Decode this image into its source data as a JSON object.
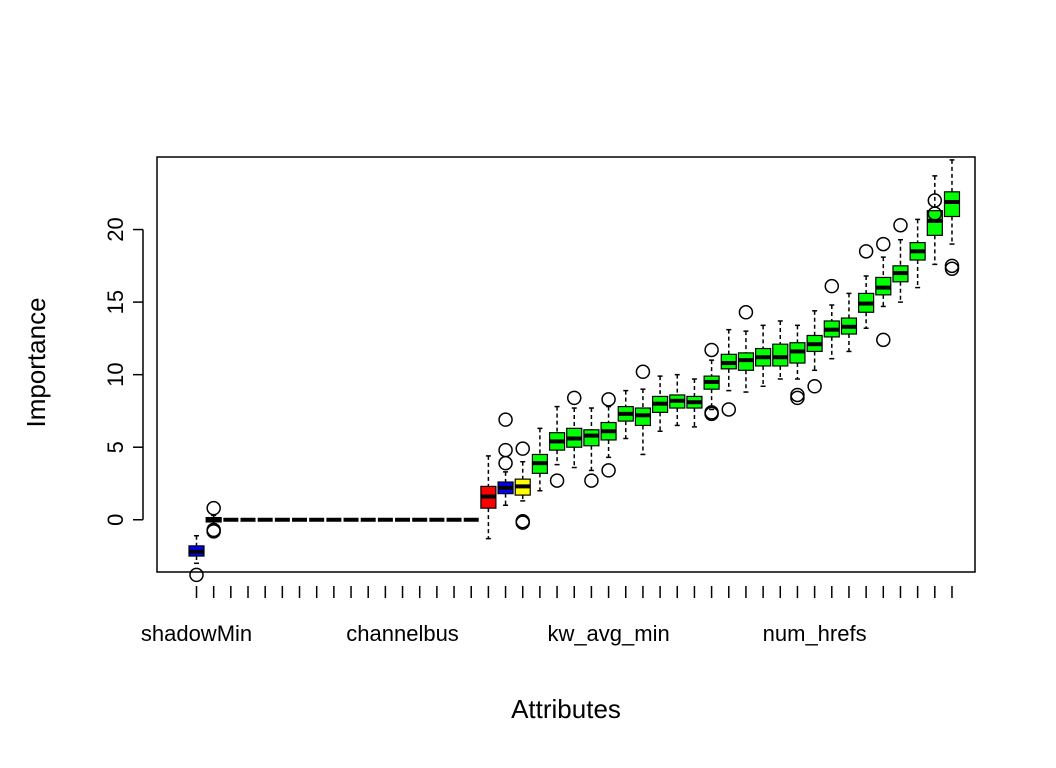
{
  "chart_data": {
    "type": "boxplot",
    "xlabel": "Attributes",
    "ylabel": "Importance",
    "ylim": [
      -3.6,
      25
    ],
    "y_ticks": [
      0,
      5,
      10,
      15,
      20
    ],
    "x_tick_labels": [
      {
        "index": 1,
        "label": "shadowMin"
      },
      {
        "index": 13,
        "label": "channelbus"
      },
      {
        "index": 25,
        "label": "kw_avg_min"
      },
      {
        "index": 37,
        "label": "num_hrefs"
      }
    ],
    "colors": {
      "shadow": "#0000FF",
      "rejected": "#FF0000",
      "tentative": "#FFFF00",
      "confirmed": "#00FF00",
      "zero": "#000000"
    },
    "boxes": [
      {
        "whisker_low": -3.0,
        "q1": -2.5,
        "median": -2.2,
        "q3": -1.8,
        "whisker_high": -1.1,
        "outliers": [
          -3.8
        ],
        "status": "shadow"
      },
      {
        "whisker_low": -0.3,
        "q1": -0.15,
        "median": 0.0,
        "q3": 0.15,
        "whisker_high": 0.3,
        "outliers": [
          0.8,
          -0.7,
          -0.8
        ],
        "status": "shadow"
      },
      {
        "whisker_low": 0,
        "q1": 0,
        "median": 0,
        "q3": 0,
        "whisker_high": 0,
        "outliers": [],
        "status": "zero"
      },
      {
        "whisker_low": 0,
        "q1": 0,
        "median": 0,
        "q3": 0,
        "whisker_high": 0,
        "outliers": [],
        "status": "zero"
      },
      {
        "whisker_low": 0,
        "q1": 0,
        "median": 0,
        "q3": 0,
        "whisker_high": 0,
        "outliers": [],
        "status": "zero"
      },
      {
        "whisker_low": 0,
        "q1": 0,
        "median": 0,
        "q3": 0,
        "whisker_high": 0,
        "outliers": [],
        "status": "zero"
      },
      {
        "whisker_low": 0,
        "q1": 0,
        "median": 0,
        "q3": 0,
        "whisker_high": 0,
        "outliers": [],
        "status": "zero"
      },
      {
        "whisker_low": 0,
        "q1": 0,
        "median": 0,
        "q3": 0,
        "whisker_high": 0,
        "outliers": [],
        "status": "zero"
      },
      {
        "whisker_low": 0,
        "q1": 0,
        "median": 0,
        "q3": 0,
        "whisker_high": 0,
        "outliers": [],
        "status": "zero"
      },
      {
        "whisker_low": 0,
        "q1": 0,
        "median": 0,
        "q3": 0,
        "whisker_high": 0,
        "outliers": [],
        "status": "zero"
      },
      {
        "whisker_low": 0,
        "q1": 0,
        "median": 0,
        "q3": 0,
        "whisker_high": 0,
        "outliers": [],
        "status": "zero"
      },
      {
        "whisker_low": 0,
        "q1": 0,
        "median": 0,
        "q3": 0,
        "whisker_high": 0,
        "outliers": [],
        "status": "zero"
      },
      {
        "whisker_low": 0,
        "q1": 0,
        "median": 0,
        "q3": 0,
        "whisker_high": 0,
        "outliers": [],
        "status": "zero"
      },
      {
        "whisker_low": 0,
        "q1": 0,
        "median": 0,
        "q3": 0,
        "whisker_high": 0,
        "outliers": [],
        "status": "zero"
      },
      {
        "whisker_low": 0,
        "q1": 0,
        "median": 0,
        "q3": 0,
        "whisker_high": 0,
        "outliers": [],
        "status": "zero"
      },
      {
        "whisker_low": 0,
        "q1": 0,
        "median": 0,
        "q3": 0,
        "whisker_high": 0,
        "outliers": [],
        "status": "zero"
      },
      {
        "whisker_low": 0,
        "q1": 0,
        "median": 0,
        "q3": 0,
        "whisker_high": 0,
        "outliers": [],
        "status": "zero"
      },
      {
        "whisker_low": -1.3,
        "q1": 0.8,
        "median": 1.6,
        "q3": 2.3,
        "whisker_high": 4.4,
        "outliers": [],
        "status": "rejected"
      },
      {
        "whisker_low": 1.0,
        "q1": 1.8,
        "median": 2.2,
        "q3": 2.6,
        "whisker_high": 3.3,
        "outliers": [
          6.9,
          4.8,
          3.9
        ],
        "status": "shadow"
      },
      {
        "whisker_low": 1.3,
        "q1": 1.7,
        "median": 2.3,
        "q3": 2.8,
        "whisker_high": 4.0,
        "outliers": [
          4.9,
          -0.1,
          -0.2
        ],
        "status": "tentative"
      },
      {
        "whisker_low": 2.0,
        "q1": 3.2,
        "median": 3.9,
        "q3": 4.5,
        "whisker_high": 6.3,
        "outliers": [],
        "status": "confirmed"
      },
      {
        "whisker_low": 3.8,
        "q1": 4.8,
        "median": 5.4,
        "q3": 6.0,
        "whisker_high": 7.8,
        "outliers": [
          2.7
        ],
        "status": "confirmed"
      },
      {
        "whisker_low": 3.6,
        "q1": 5.0,
        "median": 5.6,
        "q3": 6.3,
        "whisker_high": 7.7,
        "outliers": [
          8.4
        ],
        "status": "confirmed"
      },
      {
        "whisker_low": 3.4,
        "q1": 5.1,
        "median": 5.8,
        "q3": 6.2,
        "whisker_high": 7.7,
        "outliers": [
          2.7
        ],
        "status": "confirmed"
      },
      {
        "whisker_low": 4.3,
        "q1": 5.5,
        "median": 6.1,
        "q3": 6.7,
        "whisker_high": 7.8,
        "outliers": [
          8.3,
          3.4
        ],
        "status": "confirmed"
      },
      {
        "whisker_low": 5.6,
        "q1": 6.8,
        "median": 7.3,
        "q3": 7.8,
        "whisker_high": 8.9,
        "outliers": [],
        "status": "confirmed"
      },
      {
        "whisker_low": 4.5,
        "q1": 6.5,
        "median": 7.2,
        "q3": 7.7,
        "whisker_high": 9.0,
        "outliers": [
          10.2
        ],
        "status": "confirmed"
      },
      {
        "whisker_low": 6.1,
        "q1": 7.4,
        "median": 8.0,
        "q3": 8.5,
        "whisker_high": 9.9,
        "outliers": [],
        "status": "confirmed"
      },
      {
        "whisker_low": 6.5,
        "q1": 7.7,
        "median": 8.2,
        "q3": 8.6,
        "whisker_high": 10.0,
        "outliers": [],
        "status": "confirmed"
      },
      {
        "whisker_low": 6.4,
        "q1": 7.7,
        "median": 8.1,
        "q3": 8.5,
        "whisker_high": 9.7,
        "outliers": [],
        "status": "confirmed"
      },
      {
        "whisker_low": 7.6,
        "q1": 9.0,
        "median": 9.5,
        "q3": 9.9,
        "whisker_high": 11.0,
        "outliers": [
          11.7,
          7.4,
          7.3
        ],
        "status": "confirmed"
      },
      {
        "whisker_low": 8.9,
        "q1": 10.4,
        "median": 10.8,
        "q3": 11.4,
        "whisker_high": 13.1,
        "outliers": [
          7.6
        ],
        "status": "confirmed"
      },
      {
        "whisker_low": 8.8,
        "q1": 10.3,
        "median": 11.0,
        "q3": 11.5,
        "whisker_high": 13.0,
        "outliers": [
          14.3
        ],
        "status": "confirmed"
      },
      {
        "whisker_low": 9.2,
        "q1": 10.6,
        "median": 11.2,
        "q3": 11.8,
        "whisker_high": 13.4,
        "outliers": [],
        "status": "confirmed"
      },
      {
        "whisker_low": 9.7,
        "q1": 10.6,
        "median": 11.2,
        "q3": 12.1,
        "whisker_high": 13.7,
        "outliers": [],
        "status": "confirmed"
      },
      {
        "whisker_low": 9.7,
        "q1": 10.8,
        "median": 11.6,
        "q3": 12.2,
        "whisker_high": 13.4,
        "outliers": [
          8.6,
          8.4
        ],
        "status": "confirmed"
      },
      {
        "whisker_low": 10.3,
        "q1": 11.6,
        "median": 12.1,
        "q3": 12.7,
        "whisker_high": 14.4,
        "outliers": [
          9.2
        ],
        "status": "confirmed"
      },
      {
        "whisker_low": 11.1,
        "q1": 12.6,
        "median": 13.1,
        "q3": 13.7,
        "whisker_high": 14.8,
        "outliers": [
          16.1
        ],
        "status": "confirmed"
      },
      {
        "whisker_low": 11.6,
        "q1": 12.8,
        "median": 13.3,
        "q3": 13.9,
        "whisker_high": 15.6,
        "outliers": [],
        "status": "confirmed"
      },
      {
        "whisker_low": 13.2,
        "q1": 14.3,
        "median": 14.9,
        "q3": 15.6,
        "whisker_high": 16.8,
        "outliers": [
          18.5
        ],
        "status": "confirmed"
      },
      {
        "whisker_low": 14.7,
        "q1": 15.5,
        "median": 16.0,
        "q3": 16.7,
        "whisker_high": 18.1,
        "outliers": [
          19.0,
          12.4
        ],
        "status": "confirmed"
      },
      {
        "whisker_low": 15.0,
        "q1": 16.4,
        "median": 17.0,
        "q3": 17.5,
        "whisker_high": 19.3,
        "outliers": [
          20.3
        ],
        "status": "confirmed"
      },
      {
        "whisker_low": 16.0,
        "q1": 17.9,
        "median": 18.5,
        "q3": 19.1,
        "whisker_high": 20.7,
        "outliers": [],
        "status": "confirmed"
      },
      {
        "whisker_low": 17.6,
        "q1": 19.6,
        "median": 20.6,
        "q3": 21.3,
        "whisker_high": 23.7,
        "outliers": [
          22.0,
          21.1
        ],
        "status": "confirmed"
      },
      {
        "whisker_low": 19.0,
        "q1": 20.9,
        "median": 21.9,
        "q3": 22.6,
        "whisker_high": 24.8,
        "outliers": [
          17.5,
          17.3
        ],
        "status": "confirmed"
      }
    ]
  }
}
